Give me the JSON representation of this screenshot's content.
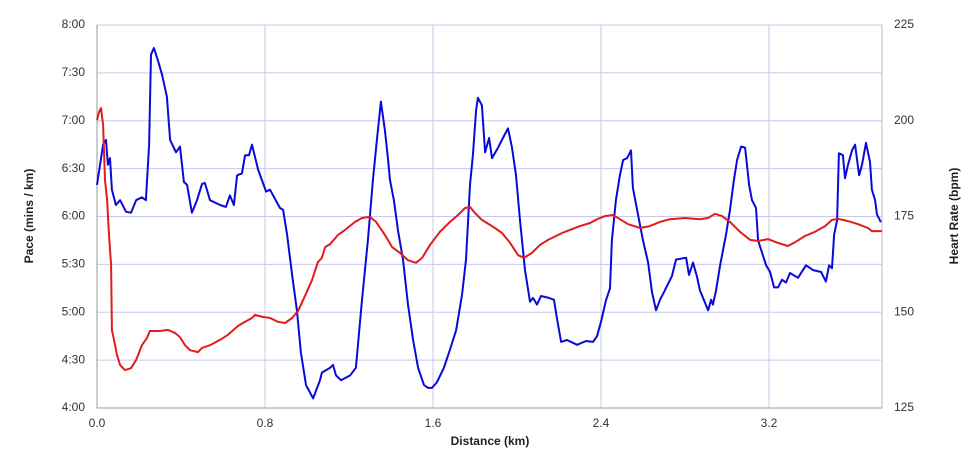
{
  "chart_data": {
    "type": "line",
    "x_label": "Distance (km)",
    "y_label": "Pace (mins / km)",
    "y2_label": "Heart Rate (bpm)",
    "xlim": [
      0,
      3.738
    ],
    "xticks": [
      {
        "value": 0,
        "label": "0.0"
      },
      0.8,
      1.6,
      2.4,
      3.2
    ],
    "ylim": [
      4,
      8
    ],
    "yticks": [
      {
        "value": 4,
        "label": "4:00"
      },
      {
        "value": 4.5,
        "label": "4:30"
      },
      {
        "value": 5,
        "label": "5:00"
      },
      {
        "value": 5.5,
        "label": "5:30"
      },
      {
        "value": 6,
        "label": "6:00"
      },
      {
        "value": 6.5,
        "label": "6:30"
      },
      {
        "value": 7,
        "label": "7:00"
      },
      {
        "value": 7.5,
        "label": "7:30"
      },
      {
        "value": 8,
        "label": "8:00"
      }
    ],
    "y2lim": [
      125,
      225
    ],
    "y2ticks": [
      125,
      150,
      175,
      200,
      225
    ],
    "grid": true,
    "series": [
      {
        "color": "#0a0ad8",
        "axis": "y",
        "x": [
          0,
          0.029,
          0.043,
          0.052,
          0.062,
          0.071,
          0.09,
          0.11,
          0.138,
          0.162,
          0.186,
          0.214,
          0.233,
          0.248,
          0.257,
          0.271,
          0.29,
          0.31,
          0.333,
          0.348,
          0.376,
          0.395,
          0.414,
          0.429,
          0.452,
          0.476,
          0.5,
          0.514,
          0.538,
          0.586,
          0.614,
          0.633,
          0.652,
          0.667,
          0.69,
          0.705,
          0.724,
          0.738,
          0.767,
          0.805,
          0.824,
          0.871,
          0.886,
          0.905,
          0.929,
          0.952,
          0.971,
          0.995,
          1.029,
          1.062,
          1.071,
          1.11,
          1.124,
          1.138,
          1.162,
          1.205,
          1.233,
          1.262,
          1.29,
          1.314,
          1.333,
          1.352,
          1.371,
          1.386,
          1.395,
          1.414,
          1.433,
          1.457,
          1.481,
          1.505,
          1.529,
          1.557,
          1.576,
          1.595,
          1.619,
          1.652,
          1.681,
          1.71,
          1.738,
          1.757,
          1.776,
          1.79,
          1.805,
          1.814,
          1.833,
          1.848,
          1.867,
          1.881,
          1.91,
          1.933,
          1.957,
          1.976,
          1.995,
          2.014,
          2.038,
          2.062,
          2.076,
          2.095,
          2.114,
          2.152,
          2.176,
          2.19,
          2.21,
          2.238,
          2.286,
          2.329,
          2.362,
          2.381,
          2.4,
          2.424,
          2.443,
          2.452,
          2.471,
          2.49,
          2.505,
          2.524,
          2.543,
          2.552,
          2.576,
          2.6,
          2.624,
          2.643,
          2.662,
          2.681,
          2.7,
          2.738,
          2.757,
          2.805,
          2.819,
          2.838,
          2.857,
          2.871,
          2.91,
          2.924,
          2.933,
          2.948,
          2.967,
          2.995,
          3.014,
          3.033,
          3.048,
          3.067,
          3.086,
          3.105,
          3.119,
          3.138,
          3.148,
          3.186,
          3.205,
          3.224,
          3.243,
          3.262,
          3.281,
          3.3,
          3.338,
          3.376,
          3.41,
          3.448,
          3.471,
          3.486,
          3.5,
          3.51,
          3.524,
          3.533,
          3.552,
          3.562,
          3.576,
          3.595,
          3.61,
          3.629,
          3.643,
          3.662,
          3.681,
          3.69,
          3.705,
          3.714,
          3.733
        ],
        "values": [
          6.33,
          6.75,
          6.8,
          6.54,
          6.61,
          6.28,
          6.12,
          6.17,
          6.05,
          6.04,
          6.17,
          6.2,
          6.17,
          6.75,
          7.69,
          7.76,
          7.63,
          7.48,
          7.25,
          6.8,
          6.67,
          6.73,
          6.36,
          6.33,
          6.04,
          6.17,
          6.34,
          6.35,
          6.17,
          6.12,
          6.1,
          6.22,
          6.12,
          6.43,
          6.45,
          6.64,
          6.64,
          6.75,
          6.49,
          6.26,
          6.28,
          6.09,
          6.07,
          5.81,
          5.39,
          5.02,
          4.58,
          4.24,
          4.1,
          4.29,
          4.37,
          4.42,
          4.45,
          4.34,
          4.29,
          4.34,
          4.42,
          5.13,
          5.75,
          6.38,
          6.8,
          7.2,
          6.9,
          6.59,
          6.38,
          6.17,
          5.86,
          5.55,
          5.08,
          4.71,
          4.42,
          4.24,
          4.21,
          4.21,
          4.27,
          4.42,
          4.61,
          4.81,
          5.18,
          5.55,
          6.33,
          6.64,
          7.11,
          7.24,
          7.16,
          6.67,
          6.82,
          6.61,
          6.72,
          6.82,
          6.92,
          6.72,
          6.43,
          5.96,
          5.44,
          5.11,
          5.15,
          5.08,
          5.17,
          5.15,
          5.13,
          4.94,
          4.69,
          4.71,
          4.66,
          4.7,
          4.69,
          4.75,
          4.9,
          5.13,
          5.25,
          5.75,
          6.17,
          6.43,
          6.59,
          6.61,
          6.69,
          6.3,
          6.02,
          5.75,
          5.52,
          5.21,
          5.02,
          5.13,
          5.21,
          5.38,
          5.55,
          5.57,
          5.39,
          5.52,
          5.37,
          5.23,
          5.02,
          5.13,
          5.08,
          5.23,
          5.49,
          5.81,
          6.07,
          6.38,
          6.59,
          6.73,
          6.72,
          6.33,
          6.17,
          6.09,
          5.75,
          5.49,
          5.42,
          5.26,
          5.26,
          5.34,
          5.31,
          5.41,
          5.36,
          5.49,
          5.44,
          5.42,
          5.32,
          5.49,
          5.46,
          5.81,
          5.96,
          6.66,
          6.64,
          6.4,
          6.54,
          6.69,
          6.75,
          6.43,
          6.54,
          6.77,
          6.57,
          6.28,
          6.17,
          6.02,
          5.94
        ]
      },
      {
        "color": "#e21b1b",
        "axis": "y2",
        "x": [
          0,
          0.01,
          0.019,
          0.029,
          0.038,
          0.048,
          0.057,
          0.067,
          0.071,
          0.086,
          0.095,
          0.11,
          0.133,
          0.162,
          0.186,
          0.214,
          0.238,
          0.252,
          0.3,
          0.338,
          0.371,
          0.395,
          0.419,
          0.443,
          0.481,
          0.5,
          0.538,
          0.586,
          0.624,
          0.671,
          0.705,
          0.738,
          0.752,
          0.786,
          0.824,
          0.862,
          0.895,
          0.929,
          0.957,
          0.99,
          1.024,
          1.052,
          1.071,
          1.086,
          1.11,
          1.148,
          1.181,
          1.229,
          1.262,
          1.3,
          1.329,
          1.371,
          1.405,
          1.443,
          1.481,
          1.519,
          1.548,
          1.586,
          1.633,
          1.681,
          1.719,
          1.752,
          1.776,
          1.8,
          1.833,
          1.881,
          1.929,
          1.967,
          2.005,
          2.033,
          2.071,
          2.11,
          2.148,
          2.186,
          2.214,
          2.252,
          2.3,
          2.348,
          2.381,
          2.419,
          2.457,
          2.49,
          2.529,
          2.586,
          2.633,
          2.681,
          2.729,
          2.8,
          2.871,
          2.91,
          2.943,
          2.976,
          3.014,
          3.062,
          3.11,
          3.148,
          3.195,
          3.243,
          3.29,
          3.324,
          3.371,
          3.419,
          3.467,
          3.5,
          3.529,
          3.576,
          3.624,
          3.671,
          3.69,
          3.738
        ],
        "values": [
          200.2,
          202.3,
          203.3,
          198.9,
          184.5,
          179.3,
          170.2,
          162.3,
          145.4,
          141.4,
          138.8,
          136.2,
          134.9,
          135.4,
          137.5,
          141.4,
          143.3,
          145.1,
          145.1,
          145.4,
          144.6,
          143.5,
          141.4,
          140.1,
          139.6,
          140.7,
          141.4,
          142.8,
          144.1,
          146.4,
          147.5,
          148.5,
          149.3,
          148.8,
          148.5,
          147.5,
          147.2,
          148.5,
          150.3,
          154.2,
          158.4,
          163.1,
          164.2,
          167,
          167.8,
          170.2,
          171.5,
          173.6,
          174.6,
          174.9,
          173.6,
          170.2,
          167,
          165.5,
          163.6,
          162.9,
          164.2,
          167.6,
          171,
          173.6,
          175.4,
          177.2,
          177.5,
          175.9,
          174.1,
          172.5,
          170.7,
          168.1,
          164.9,
          164.2,
          165.5,
          167.6,
          168.9,
          169.9,
          170.7,
          171.5,
          172.5,
          173.3,
          174.3,
          175.1,
          175.4,
          174.3,
          173,
          172,
          172.5,
          173.6,
          174.3,
          174.6,
          174.3,
          174.6,
          175.7,
          175.1,
          173.6,
          171,
          168.9,
          168.6,
          169.1,
          168.1,
          167.3,
          168.3,
          169.9,
          171,
          172.5,
          174.1,
          174.4,
          173.8,
          173,
          172,
          171.2,
          171.2
        ]
      }
    ]
  }
}
